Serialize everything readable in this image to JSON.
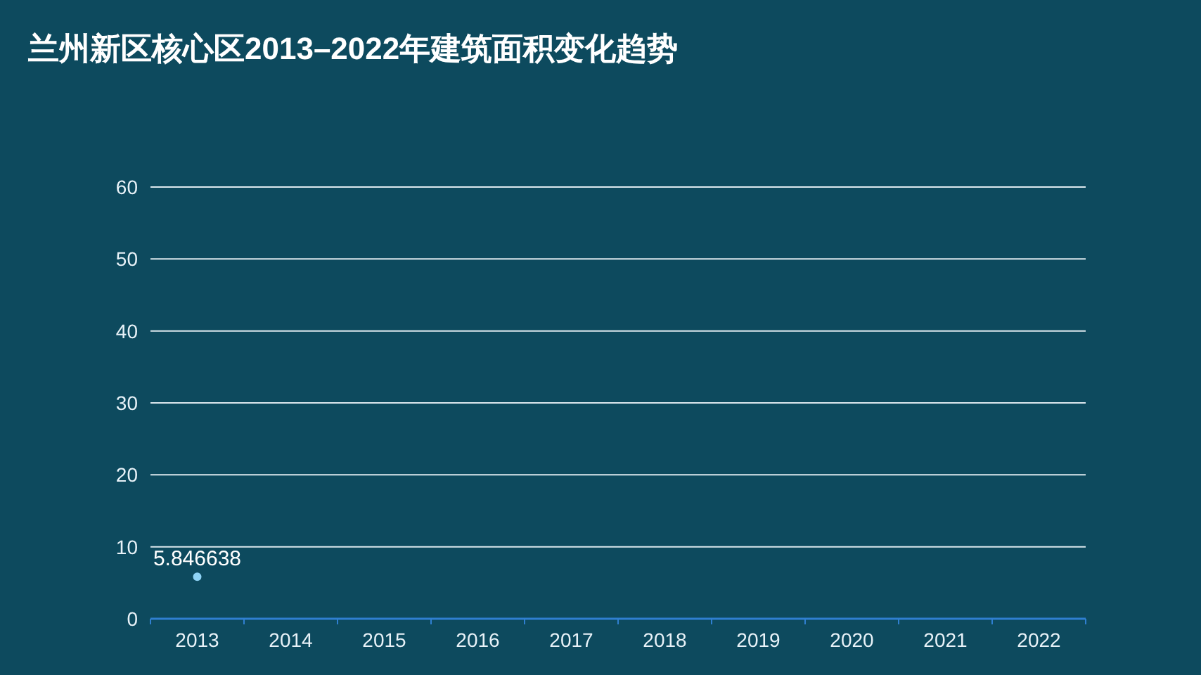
{
  "chart_data": {
    "type": "line",
    "title": "兰州新区核心区2013–2022年建筑面积变化趋势",
    "categories": [
      "2013",
      "2014",
      "2015",
      "2016",
      "2017",
      "2018",
      "2019",
      "2020",
      "2021",
      "2022"
    ],
    "series": [
      {
        "color": "#8fd3f5",
        "values": [
          5.846638,
          null,
          null,
          null,
          null,
          null,
          null,
          null,
          null,
          null
        ]
      }
    ],
    "data_labels": true,
    "marker": "circle",
    "ylim": [
      0,
      60
    ],
    "yticks": [
      0,
      10,
      20,
      30,
      40,
      50,
      60
    ],
    "grid": "y"
  }
}
